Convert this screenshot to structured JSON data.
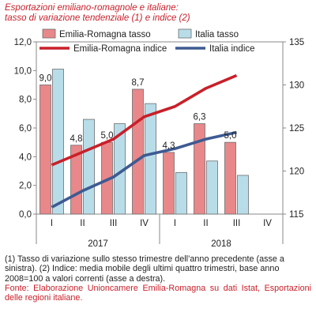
{
  "title": {
    "line1": "Esportazioni emiliano-romagnole e italiane:",
    "line2": "tasso di variazione tendenziale (1) e indice (2)"
  },
  "chart_data": {
    "type": "bar",
    "categories": [
      "I",
      "II",
      "III",
      "IV",
      "I",
      "II",
      "III",
      "IV"
    ],
    "groups": [
      {
        "label": "2017",
        "categories": [
          "I",
          "II",
          "III",
          "IV"
        ]
      },
      {
        "label": "2018",
        "categories": [
          "I",
          "II",
          "III",
          "IV"
        ]
      }
    ],
    "series": [
      {
        "name": "Emilia-Romagna tasso",
        "type": "bar",
        "axis": "left",
        "color": "#e8888a",
        "values": [
          9.0,
          4.8,
          5.0,
          8.7,
          4.3,
          6.3,
          5.0,
          null
        ],
        "labels": [
          "9,0",
          "4,8",
          "5,0",
          "8,7",
          "4,3",
          "6,3",
          "5,0",
          ""
        ]
      },
      {
        "name": "Italia tasso",
        "type": "bar",
        "axis": "left",
        "color": "#b8dde9",
        "values": [
          10.1,
          6.6,
          6.3,
          7.7,
          2.9,
          3.7,
          2.7,
          null
        ]
      },
      {
        "name": "Emilia-Romagna indice",
        "type": "line",
        "axis": "right",
        "color": "#c8202a",
        "values": [
          120.7,
          122.2,
          123.7,
          126.3,
          127.5,
          129.6,
          131.1,
          null
        ]
      },
      {
        "name": "Italia indice",
        "type": "line",
        "axis": "right",
        "color": "#3e5a92",
        "values": [
          115.8,
          117.7,
          119.3,
          121.8,
          122.6,
          123.7,
          124.5,
          null
        ]
      }
    ],
    "y_left": {
      "min": 0,
      "max": 12,
      "step": 2,
      "ticks": [
        "0,0",
        "2,0",
        "4,0",
        "6,0",
        "8,0",
        "10,0",
        "12,0"
      ]
    },
    "y_right": {
      "min": 115,
      "max": 135,
      "step": 5,
      "ticks": [
        "115",
        "120",
        "125",
        "130",
        "135"
      ]
    },
    "legend": {
      "position": "top",
      "items": [
        "Emilia-Romagna tasso",
        "Italia tasso",
        "Emilia-Romagna indice",
        "Italia indice"
      ]
    },
    "grid": false
  },
  "notes": {
    "note1": "(1) Tasso di variazione sullo stesso trimestre dell’anno precedente (asse a sinistra). (2) Indice: media mobile degli ultimi quattro trimestri, base anno 2008=100 a valori correnti (asse a destra).",
    "source": "Fonte: Elaborazione Unioncamere Emilia-Romagna su dati Istat, Esportazioni delle regioni italiane."
  }
}
